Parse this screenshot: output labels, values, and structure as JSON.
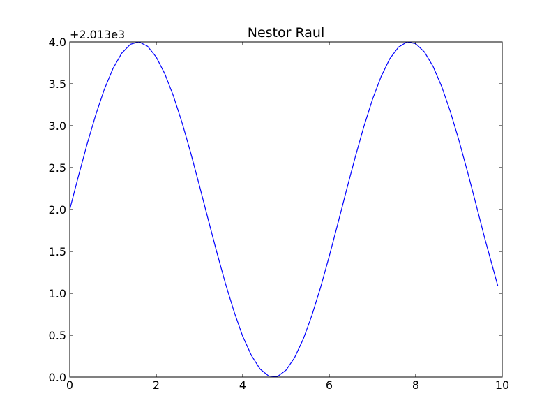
{
  "chart_data": {
    "type": "line",
    "title": "Nestor Raul",
    "xlabel": "",
    "ylabel": "",
    "y_offset_label": "+2.013e3",
    "y_offset": 2013,
    "xlim": [
      0,
      10
    ],
    "ylim": [
      0,
      4
    ],
    "x_ticks": [
      0,
      2,
      4,
      6,
      8,
      10
    ],
    "x_tick_labels": [
      "0",
      "2",
      "4",
      "6",
      "8",
      "10"
    ],
    "y_ticks": [
      0,
      0.5,
      1.0,
      1.5,
      2.0,
      2.5,
      3.0,
      3.5,
      4.0
    ],
    "y_tick_labels": [
      "0.0",
      "0.5",
      "1.0",
      "1.5",
      "2.0",
      "2.5",
      "3.0",
      "3.5",
      "4.0"
    ],
    "grid": false,
    "line_color": "#0000ff",
    "series": [
      {
        "x": [
          0.0,
          0.2,
          0.4,
          0.6,
          0.8,
          1.0,
          1.2,
          1.4,
          1.6,
          1.8,
          2.0,
          2.2,
          2.4,
          2.6,
          2.8,
          3.0,
          3.2,
          3.4,
          3.6,
          3.8,
          4.0,
          4.2,
          4.4,
          4.6,
          4.8,
          5.0,
          5.2,
          5.4,
          5.6,
          5.8,
          6.0,
          6.2,
          6.4,
          6.6,
          6.8,
          7.0,
          7.2,
          7.4,
          7.6,
          7.8,
          8.0,
          8.2,
          8.4,
          8.6,
          8.8,
          9.0,
          9.2,
          9.4,
          9.6,
          9.9
        ],
        "y": [
          2.0,
          2.397,
          2.779,
          3.129,
          3.435,
          3.683,
          3.864,
          3.971,
          4.0,
          3.948,
          3.819,
          3.617,
          3.351,
          3.031,
          2.67,
          2.282,
          1.883,
          1.49,
          1.117,
          0.781,
          0.486,
          0.259,
          0.097,
          0.013,
          0.005,
          0.082,
          0.233,
          0.454,
          0.738,
          1.07,
          1.441,
          1.833,
          2.233,
          2.623,
          2.988,
          3.314,
          3.587,
          3.799,
          3.937,
          4.0,
          3.979,
          3.881,
          3.709,
          3.468,
          3.169,
          2.824,
          2.446,
          2.05,
          1.649,
          1.085
        ]
      }
    ]
  }
}
